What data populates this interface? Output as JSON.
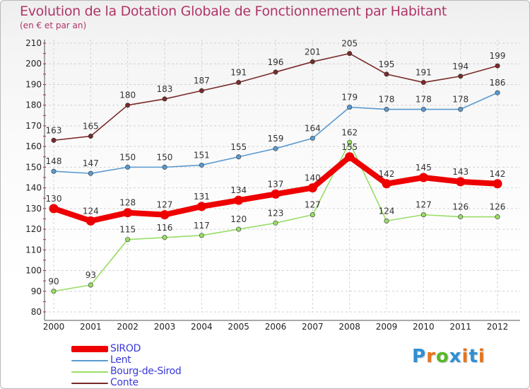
{
  "title": "Evolution de la Dotation Globale de Fonctionnement par Habitant",
  "subtitle": "(en € et par an)",
  "brand": {
    "letters": [
      "P",
      "r",
      "o",
      "x",
      "i",
      "t",
      "i"
    ],
    "colors": [
      "#2e8fd6",
      "#e8741c",
      "#58b82a",
      "#2e8fd6",
      "#e8741c",
      "#2e8fd6",
      "#e8741c"
    ]
  },
  "chart_data": {
    "type": "line",
    "title": "Evolution de la Dotation Globale de Fonctionnement par Habitant",
    "subtitle": "(en € et par an)",
    "xlabel": "",
    "ylabel": "",
    "ylim": [
      80,
      210
    ],
    "yticks": [
      80,
      90,
      100,
      110,
      120,
      130,
      140,
      150,
      160,
      170,
      180,
      190,
      200,
      210
    ],
    "categories": [
      "2000",
      "2001",
      "2002",
      "2003",
      "2004",
      "2005",
      "2006",
      "2007",
      "2008",
      "2009",
      "2010",
      "2011",
      "2012"
    ],
    "grid": true,
    "legend_position": "bottom-left",
    "series": [
      {
        "name": "SIROD",
        "color": "#ee0000",
        "emphasis": true,
        "values": [
          130,
          124,
          128,
          127,
          131,
          134,
          137,
          140,
          155,
          142,
          145,
          143,
          142
        ]
      },
      {
        "name": "Lent",
        "color": "#5a9ad0",
        "emphasis": false,
        "values": [
          148,
          147,
          150,
          150,
          151,
          155,
          159,
          164,
          179,
          178,
          178,
          178,
          186
        ]
      },
      {
        "name": "Bourg-de-Sirod",
        "color": "#99dd66",
        "emphasis": false,
        "values": [
          90,
          93,
          115,
          116,
          117,
          120,
          123,
          127,
          162,
          124,
          127,
          126,
          126
        ]
      },
      {
        "name": "Conte",
        "color": "#7a2a2a",
        "emphasis": false,
        "values": [
          163,
          165,
          180,
          183,
          187,
          191,
          196,
          201,
          205,
          195,
          191,
          194,
          199
        ]
      }
    ]
  }
}
